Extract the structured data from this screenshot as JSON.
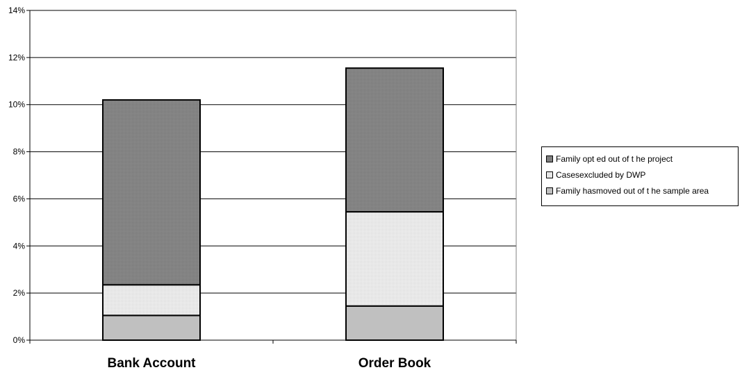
{
  "chart_data": {
    "type": "bar",
    "stacked": true,
    "categories": [
      "Bank Account",
      "Order Book"
    ],
    "y_ticks": [
      "0%",
      "2%",
      "4%",
      "6%",
      "8%",
      "10%",
      "12%",
      "14%"
    ],
    "ylim": [
      0,
      14
    ],
    "y_unit": "%",
    "grid": true,
    "legend_position": "right",
    "series": [
      {
        "name": "Family has moved out of the sample area",
        "values": [
          1.05,
          1.45
        ],
        "color": "#c0c0c0"
      },
      {
        "name": "Cases excluded by DWP",
        "values": [
          1.3,
          4.0
        ],
        "color": "#e6e6e6"
      },
      {
        "name": "Family opted out of the project",
        "values": [
          7.85,
          6.1
        ],
        "color": "#7f7f7f"
      }
    ],
    "legend_entries": [
      "Family opt ed out of t he project",
      "Casesexcluded by DWP",
      "Family hasmoved out of t he sample area"
    ]
  }
}
